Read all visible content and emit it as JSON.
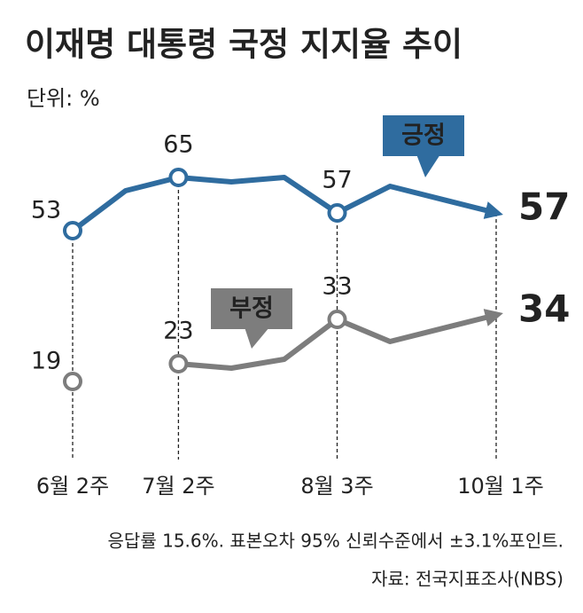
{
  "chart_data": {
    "type": "line",
    "title": "이재명 대통령 국정 지지율 추이",
    "subtitle": "단위: %",
    "categories": [
      "6월 2주",
      null,
      "7월 2주",
      null,
      null,
      "8월 3주",
      null,
      "10월 1주"
    ],
    "series": [
      {
        "name": "긍정",
        "color": "#2f6c9f",
        "values": [
          53,
          62,
          65,
          64,
          65,
          57,
          63,
          57
        ]
      },
      {
        "name": "부정",
        "color": "#7d7d7d",
        "values": [
          19,
          null,
          23,
          22,
          24,
          33,
          28,
          34
        ]
      }
    ],
    "ylim": [
      9,
      75
    ],
    "notes": [
      "응답률 15.6%. 표본오차 95% 신뢰수준에서 ±3.1%포인트.",
      "자료: 전국지표조사(NBS)"
    ]
  }
}
